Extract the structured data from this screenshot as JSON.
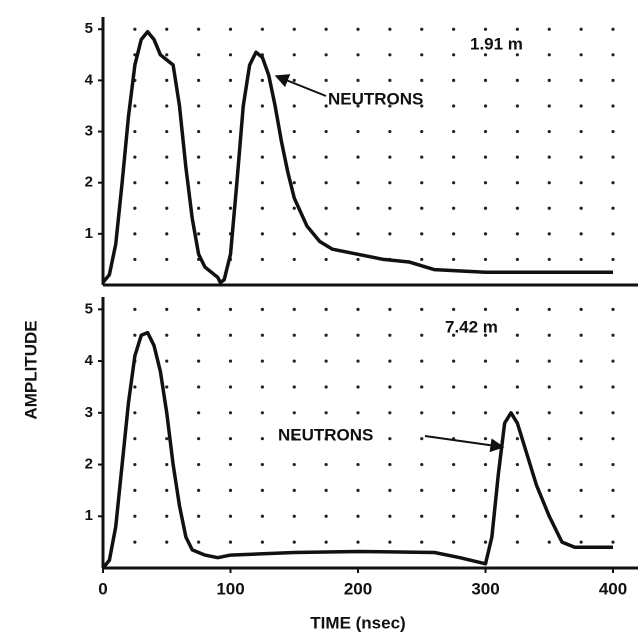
{
  "xlabel": "TIME (nsec)",
  "ylabel": "AMPLITUDE",
  "chart_data": [
    {
      "type": "line",
      "annotations": [
        "1.91 m",
        "NEUTRONS"
      ],
      "xlim": [
        0,
        400
      ],
      "ylim": [
        0,
        5.2
      ],
      "yticks": [
        1,
        2,
        3,
        4,
        5
      ],
      "grid": "dotted",
      "color": "#111",
      "x": [
        0,
        5,
        10,
        15,
        20,
        25,
        30,
        35,
        40,
        45,
        50,
        55,
        60,
        65,
        70,
        75,
        80,
        90,
        92,
        95,
        100,
        105,
        110,
        115,
        120,
        125,
        130,
        135,
        140,
        145,
        150,
        160,
        170,
        180,
        200,
        220,
        240,
        260,
        300,
        400
      ],
      "values": [
        0.05,
        0.2,
        0.8,
        2,
        3.3,
        4.3,
        4.8,
        4.95,
        4.8,
        4.5,
        4.4,
        4.3,
        3.5,
        2.3,
        1.3,
        0.6,
        0.35,
        0.15,
        0.05,
        0.1,
        0.6,
        2,
        3.5,
        4.3,
        4.55,
        4.45,
        4.1,
        3.5,
        2.8,
        2.2,
        1.7,
        1.15,
        0.85,
        0.7,
        0.6,
        0.5,
        0.45,
        0.3,
        0.25,
        0.25
      ]
    },
    {
      "type": "line",
      "annotations": [
        "7.42 m",
        "NEUTRONS"
      ],
      "xlim": [
        0,
        400
      ],
      "ylim": [
        0,
        5.2
      ],
      "xticks": [
        0,
        100,
        200,
        300,
        400
      ],
      "yticks": [
        1,
        2,
        3,
        4,
        5
      ],
      "grid": "dotted",
      "color": "#111",
      "x": [
        0,
        5,
        10,
        15,
        20,
        25,
        30,
        35,
        40,
        45,
        50,
        55,
        60,
        65,
        70,
        80,
        90,
        100,
        150,
        200,
        260,
        280,
        300,
        305,
        310,
        315,
        320,
        325,
        330,
        340,
        350,
        360,
        370,
        400
      ],
      "values": [
        0,
        0.15,
        0.8,
        2,
        3.2,
        4.1,
        4.5,
        4.55,
        4.3,
        3.8,
        3,
        2,
        1.2,
        0.6,
        0.35,
        0.25,
        0.2,
        0.25,
        0.3,
        0.32,
        0.3,
        0.2,
        0.08,
        0.6,
        1.8,
        2.8,
        3,
        2.8,
        2.4,
        1.6,
        1,
        0.5,
        0.4,
        0.4
      ]
    }
  ]
}
